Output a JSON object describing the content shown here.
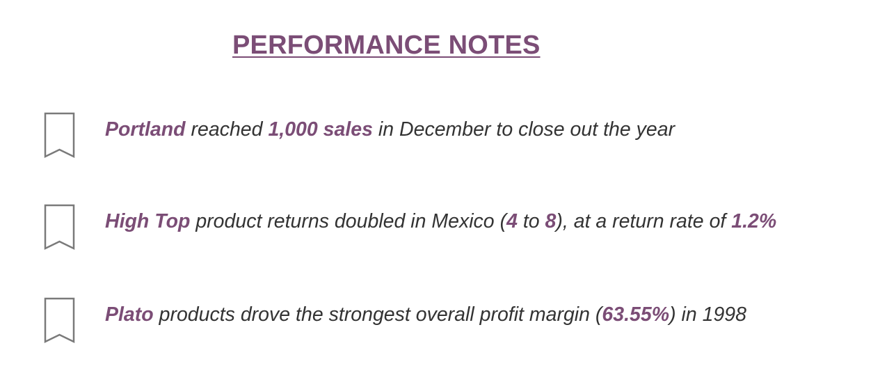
{
  "title": "PERFORMANCE NOTES",
  "colors": {
    "accent": "#7b4d76",
    "text": "#333333",
    "icon_stroke": "#7a7a7a"
  },
  "icons": {
    "note_marker": "bookmark-icon"
  },
  "notes": [
    {
      "parts": [
        "Portland",
        " reached ",
        "1,000 sales",
        " in December to close out the year"
      ]
    },
    {
      "parts": [
        "High Top",
        " product returns doubled in Mexico (",
        "4",
        " to ",
        "8",
        "), at a return rate of ",
        "1.2%"
      ]
    },
    {
      "parts": [
        "Plato",
        " products drove the strongest overall profit margin (",
        "63.55%",
        ") in 1998"
      ]
    }
  ]
}
